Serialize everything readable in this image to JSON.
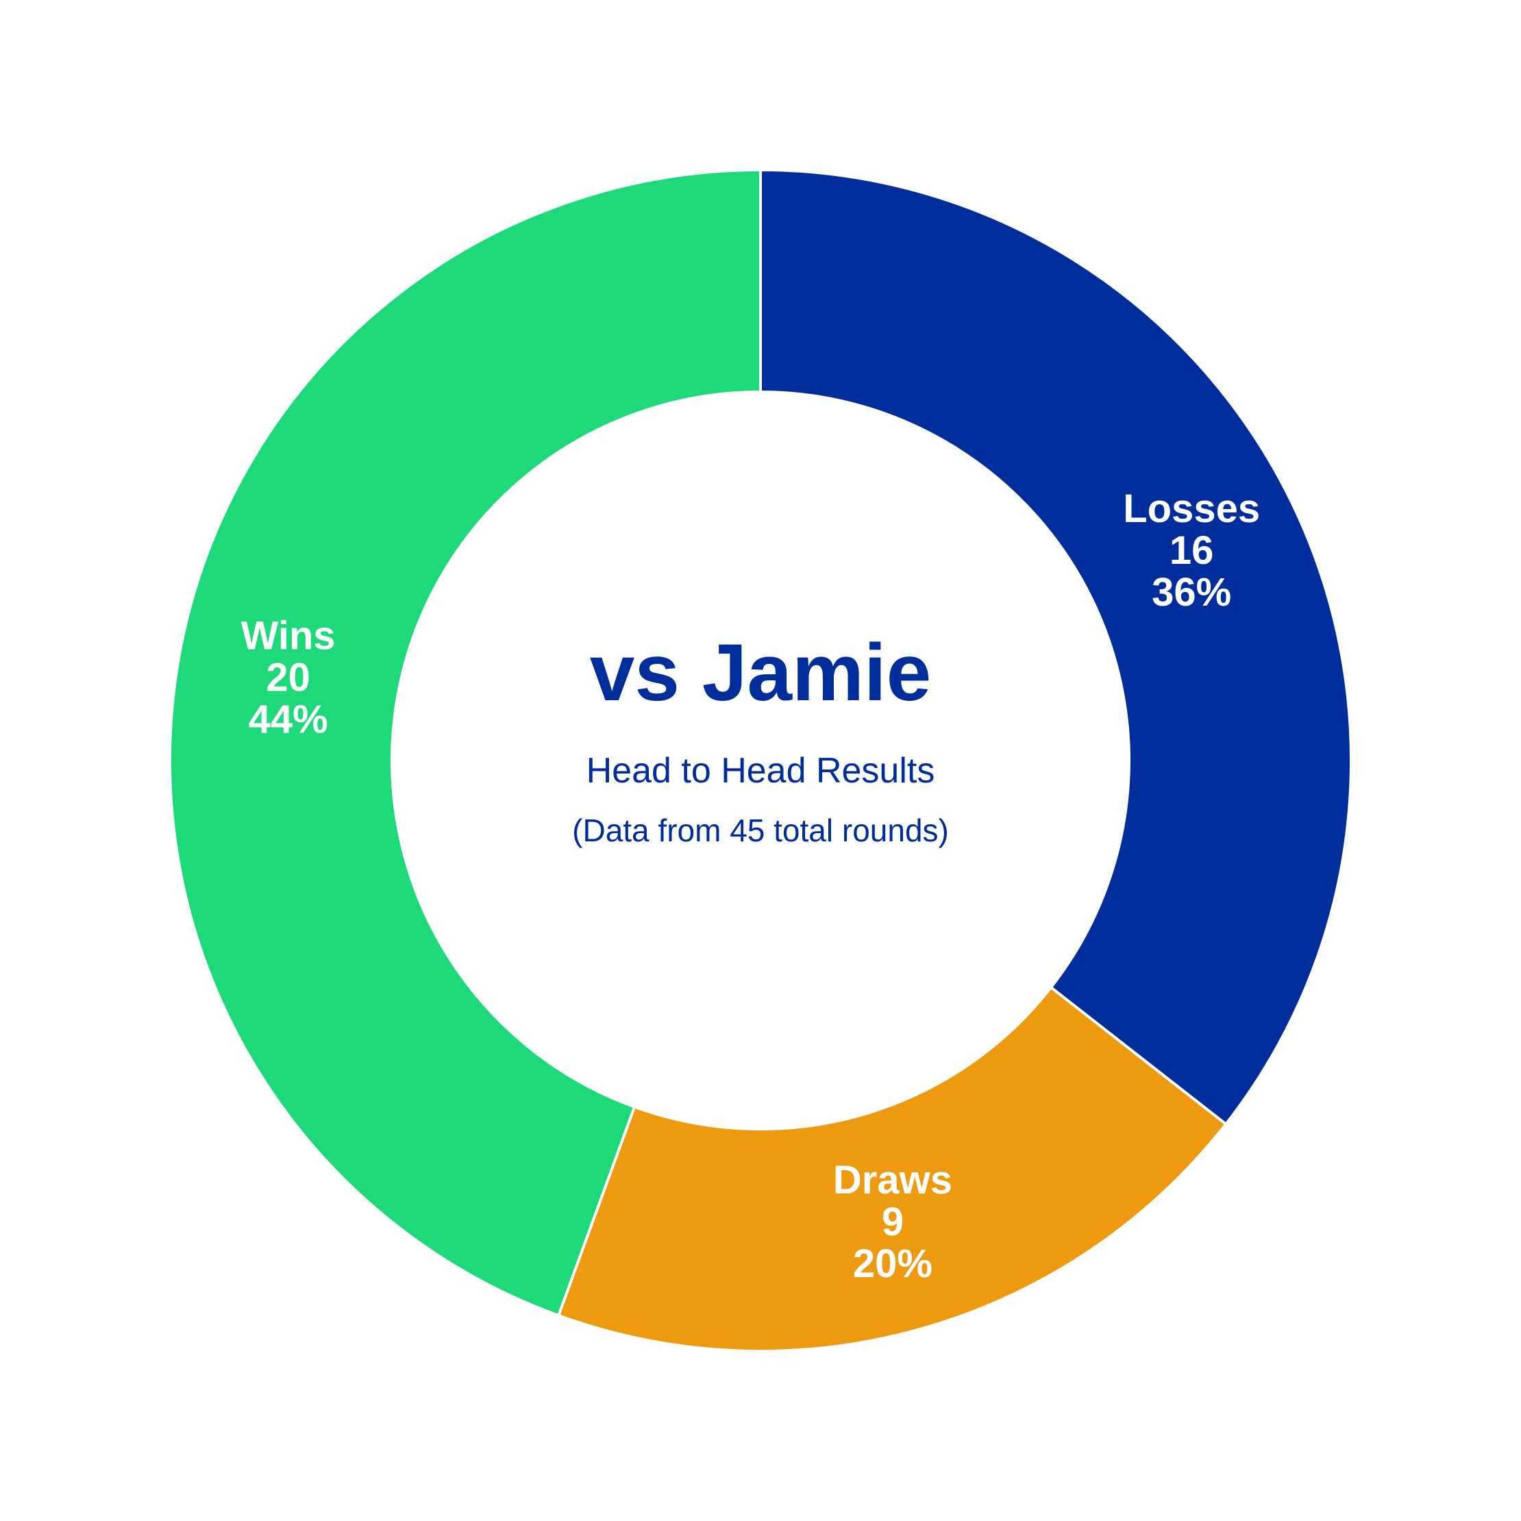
{
  "chart_data": {
    "type": "pie",
    "style": "donut",
    "title": "vs Jamie",
    "subtitle": "Head to Head Results",
    "note": "(Data from 45 total rounds)",
    "slices": [
      {
        "label": "Losses",
        "value": 16,
        "percent": "36%",
        "color": "#002D9C"
      },
      {
        "label": "Draws",
        "value": 9,
        "percent": "20%",
        "color": "#EE9A11"
      },
      {
        "label": "Wins",
        "value": 20,
        "percent": "44%",
        "color": "#1DD97A"
      }
    ],
    "text_color": "#002D9C",
    "slice_border_color": "#FFFFFF",
    "start": "12 o'clock",
    "direction": "clockwise"
  }
}
